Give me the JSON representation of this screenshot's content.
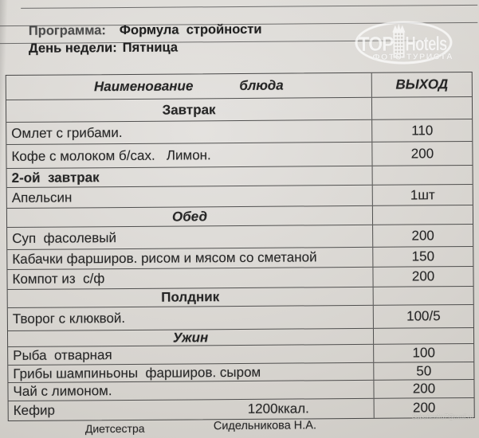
{
  "header": {
    "program_label": "Программа:",
    "program_value": "Формула  стройности",
    "day_label": "День недели:",
    "day_value": "Пятница"
  },
  "watermark": {
    "top": "TOP",
    "hotels": "Hotels",
    "subtitle": "ФОТО ТУРИСТА"
  },
  "table": {
    "header": {
      "col_dish_word1": "Наименование",
      "col_dish_word2": "блюда",
      "col_output": "ВЫХОД"
    },
    "rows": [
      {
        "style": "section-center",
        "text": "Завтрак",
        "value": ""
      },
      {
        "style": "dish",
        "text": "Омлет с грибами.",
        "value": "110"
      },
      {
        "style": "dish",
        "text": "Кофе с молоком б/сах.   Лимон.",
        "value": "200"
      },
      {
        "style": "section-left",
        "text": "2-ой  завтрак",
        "value": ""
      },
      {
        "style": "dish",
        "text": "Апельсин",
        "value": "1шт"
      },
      {
        "style": "section-center-italic",
        "text": "Обед",
        "value": ""
      },
      {
        "style": "dish",
        "text": "Суп  фасолевый",
        "value": "200"
      },
      {
        "style": "dish",
        "text": "Кабачки фарширов. рисом и мясом со сметаной",
        "value": "150"
      },
      {
        "style": "dish",
        "text": "Компот из  с/ф",
        "value": "200"
      },
      {
        "style": "section-center",
        "text": "Полдник",
        "value": ""
      },
      {
        "style": "dish",
        "text": "Творог с клюквой.",
        "value": "100/5"
      },
      {
        "style": "section-center-italic",
        "text": "Ужин",
        "value": ""
      },
      {
        "style": "dish",
        "text": "Рыба  отварная",
        "value": "100"
      },
      {
        "style": "dish",
        "text": "Грибы шампиньоны  фарширов. сыром",
        "value": "50"
      },
      {
        "style": "dish",
        "text": "Чай с лимоном.",
        "value": "200"
      },
      {
        "style": "dish",
        "text": "Кефир",
        "extra": "1200ккал.",
        "value": "200"
      }
    ]
  },
  "footer": {
    "dietitian_label": "Диетсестра",
    "dietitian_name": "Сидельникова Н.А."
  },
  "corner_watermark": "Sabohenko7@mail.ru",
  "colors": {
    "paper": "#d6d3ce",
    "ink": "#262626",
    "line": "#3a3a3a",
    "watermark": "#ffffff"
  }
}
